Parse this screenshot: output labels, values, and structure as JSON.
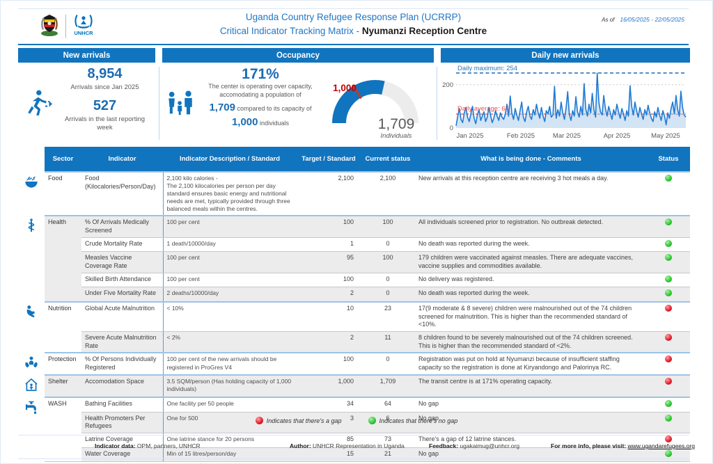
{
  "header": {
    "title_line1": "Uganda Country Refugee Response Plan (UCRRP)",
    "title_line2_prefix": "Critical Indicator Tracking Matrix - ",
    "title_line2_bold": "Nyumanzi Reception Centre",
    "as_of_label": "As of",
    "date_range": "16/05/2025 - 22/05/2025",
    "logos": [
      "uganda-coat-of-arms",
      "unhcr-logo"
    ]
  },
  "colors": {
    "brand_blue": "#1174be",
    "title_blue": "#2176c7",
    "number_blue": "#1b6cb3",
    "gauge_red": "#c00000",
    "avg_line_red": "#e8524f",
    "dot_red": "#e8112d",
    "dot_green": "#3bd23b",
    "text_gray": "#595959"
  },
  "panels": {
    "new_arrivals": {
      "title": "New arrivals",
      "icon": "running-person-icon",
      "total": "8,954",
      "total_caption": "Arrivals since Jan 2025",
      "weekly": "527",
      "weekly_caption": "Arrivals in the last reporting week"
    },
    "occupancy": {
      "title": "Occupancy",
      "icon": "family-icon",
      "percent": "171%",
      "line1": "The center is operating over capacity,",
      "line2": "accomodating a population of",
      "population": "1,709",
      "line3": " compared to its capacity of",
      "capacity": "1,000",
      "line4": " individuals",
      "gauge": {
        "value": 1709,
        "target": 1000,
        "max": 3000,
        "value_label": "1,709",
        "target_label": "1,000",
        "unit_label": "Individuals"
      }
    },
    "daily_new_arrivals": {
      "title": "Daily new arrivals"
    }
  },
  "chart_data": [
    {
      "type": "area",
      "title": "Daily new arrivals",
      "x_labels": [
        "Jan 2025",
        "Feb 2025",
        "Mar 2025",
        "Apr 2025",
        "May 2025"
      ],
      "y_ticks": [
        0,
        200
      ],
      "ylim": [
        0,
        270
      ],
      "daily_maximum": 254,
      "daily_maximum_label": "Daily maximum: 254",
      "daily_average": 64,
      "daily_average_label": "Daily average: 64",
      "legend_position": "none",
      "grid": "y-200-dotted",
      "values": [
        10,
        55,
        90,
        40,
        25,
        70,
        95,
        50,
        30,
        65,
        100,
        45,
        20,
        60,
        85,
        35,
        55,
        75,
        30,
        50,
        95,
        60,
        25,
        45,
        80,
        55,
        35,
        70,
        50,
        40,
        65,
        110,
        55,
        148,
        70,
        40,
        90,
        60,
        35,
        80,
        120,
        50,
        30,
        75,
        100,
        55,
        40,
        85,
        60,
        110,
        70,
        45,
        95,
        55,
        30,
        80,
        65,
        100,
        50,
        60,
        193,
        45,
        85,
        55,
        120,
        70,
        40,
        90,
        168,
        65,
        35,
        80,
        55,
        145,
        75,
        50,
        100,
        60,
        205,
        90,
        55,
        110,
        70,
        160,
        85,
        50,
        254,
        120,
        75,
        60,
        150,
        90,
        55,
        100,
        70,
        40,
        85,
        60,
        110,
        75,
        45,
        90,
        65,
        35,
        80,
        55,
        195,
        100,
        60,
        120,
        80,
        50,
        95,
        65,
        40,
        85,
        60,
        105,
        70,
        45,
        30,
        75,
        50,
        95,
        60,
        35,
        80,
        55,
        15,
        70,
        45,
        90,
        120,
        65,
        150,
        85,
        55,
        170,
        95,
        60,
        50
      ]
    },
    {
      "type": "gauge",
      "title": "Occupancy gauge",
      "value": 1709,
      "target": 1000,
      "range": [
        0,
        3000
      ],
      "value_label": "1,709",
      "target_label": "1,000",
      "unit_label": "Individuals"
    }
  ],
  "table": {
    "headers": [
      "Sector",
      "Indicator",
      "Indicator Description / Standard",
      "Target / Standard",
      "Current status",
      "What is being done - Comments",
      "Status"
    ],
    "groups": [
      {
        "sector": "Food",
        "icon": "food-icon",
        "rows": [
          {
            "indicator": "Food (Kilocalories/Person/Day)",
            "description": "2,100 kilo calories -\nThe 2,100 kilocalories per person per day standard ensures basic energy and nutritional needs are met, typically provided through three balanced meals within the centres.",
            "target": "2,100",
            "current": "2,100",
            "comments": "New arrivals at this reception centre are receiving 3 hot meals a day.",
            "status": "green"
          }
        ]
      },
      {
        "sector": "Health",
        "icon": "health-icon",
        "rows": [
          {
            "indicator": "% Of Arrivals Medically Screened",
            "description": "100 per cent",
            "target": "100",
            "current": "100",
            "comments": "All individuals screened prior to registration. No outbreak detected.",
            "status": "green"
          },
          {
            "indicator": "Crude Mortality Rate",
            "description": "1 death/10000/day",
            "target": "1",
            "current": "0",
            "comments": "No death was reported during the week.",
            "status": "green"
          },
          {
            "indicator": "Measles Vaccine Coverage Rate",
            "description": "100 per cent",
            "target": "95",
            "current": "100",
            "comments": "179 children were vaccinated against measles. There are adequate vaccines, vaccine supplies and commodities available.",
            "status": "green"
          },
          {
            "indicator": "Skilled Birth Attendance",
            "description": "100 per cent",
            "target": "100",
            "current": "0",
            "comments": "No delivery was registered.",
            "status": "green"
          },
          {
            "indicator": "Under Five Mortality Rate",
            "description": "2 deaths/10000/day",
            "target": "2",
            "current": "0",
            "comments": "No death was reported during the week.",
            "status": "green"
          }
        ]
      },
      {
        "sector": "Nutrition",
        "icon": "nutrition-icon",
        "rows": [
          {
            "indicator": "Global Acute Malnutrition",
            "description": "< 10%",
            "target": "10",
            "current": "23",
            "comments": "17(9 moderate & 8 severe) children were malnourished out of the 74 children screened for malnutrition. This is higher than the recommended standard of <10%.",
            "status": "red"
          },
          {
            "indicator": "Severe Acute Malnutrition Rate",
            "description": "< 2%",
            "target": "2",
            "current": "11",
            "comments": "8 children found to be severely malnourished out of the 74 children screened. This is higher than the recommended standard of <2%.",
            "status": "red"
          }
        ]
      },
      {
        "sector": "Protection",
        "icon": "protection-icon",
        "rows": [
          {
            "indicator": "% Of Persons Individually Registered",
            "description": "100 per cent of the new arrivals should be registered in ProGres V4",
            "target": "100",
            "current": "0",
            "comments": "Registration was put on hold at Nyumanzi because of insufficient staffing capacity so the registration is done at Kiryandongo and Palorinya RC.",
            "status": "red"
          }
        ]
      },
      {
        "sector": "Shelter",
        "icon": "shelter-icon",
        "rows": [
          {
            "indicator": "Accomodation Space",
            "description": "3.5 SQM/person (Has holding capacity of 1,000 individuals)",
            "target": "1,000",
            "current": "1,709",
            "comments": "The transit centre is at 171% operating capacity.",
            "status": "red"
          }
        ]
      },
      {
        "sector": "WASH",
        "icon": "wash-icon",
        "rows": [
          {
            "indicator": "Bathing Facilities",
            "description": "One facility per 50 people",
            "target": "34",
            "current": "64",
            "comments": "No gap",
            "status": "green"
          },
          {
            "indicator": "Health Promoters Per Refugees",
            "description": "One for 500",
            "target": "3",
            "current": "6",
            "comments": "No gap",
            "status": "green"
          },
          {
            "indicator": "Latrine Coverage",
            "description": "One latrine stance for 20 persons",
            "target": "85",
            "current": "73",
            "comments": "There's a gap of 12 latrine stances.",
            "status": "red"
          },
          {
            "indicator": "Water Coverage",
            "description": "Min of 15 litres/person/day",
            "target": "15",
            "current": "21",
            "comments": "No gap",
            "status": "green"
          }
        ]
      }
    ]
  },
  "legend": {
    "gap": "Indicates that there's a gap",
    "no_gap": "Indicates that there's no gap"
  },
  "footer": {
    "items": [
      {
        "label": "Indicator data:",
        "value": " OPM, partners, UNHCR"
      },
      {
        "label": "Author:",
        "value": " UNHCR Representation in Uganda"
      },
      {
        "label": "Feedback:",
        "value": " ugakaimug@unhcr.org"
      },
      {
        "label": "For more info, please visit: ",
        "value": "www.ugandarefugees.org",
        "link": true
      }
    ]
  }
}
